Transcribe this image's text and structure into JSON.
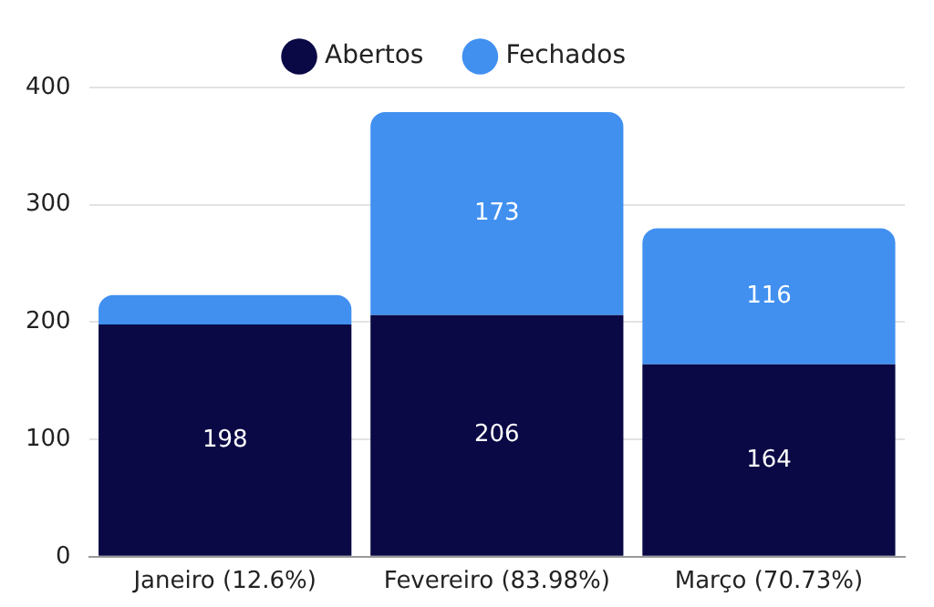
{
  "chart_data": {
    "type": "bar",
    "stacked": true,
    "categories": [
      "Janeiro (12.6%)",
      "Fevereiro (83.98%)",
      "Março (70.73%)"
    ],
    "series": [
      {
        "name": "Abertos",
        "color": "#0a0845",
        "values": [
          198,
          206,
          164
        ],
        "value_labels": [
          "198",
          "206",
          "164"
        ]
      },
      {
        "name": "Fechados",
        "color": "#4190f0",
        "values": [
          25,
          173,
          116
        ],
        "value_labels": [
          null,
          "173",
          "116"
        ]
      }
    ],
    "ylim": [
      0,
      400
    ],
    "yticks": [
      0,
      100,
      200,
      300,
      400
    ],
    "grid": "y",
    "legend": "top"
  }
}
